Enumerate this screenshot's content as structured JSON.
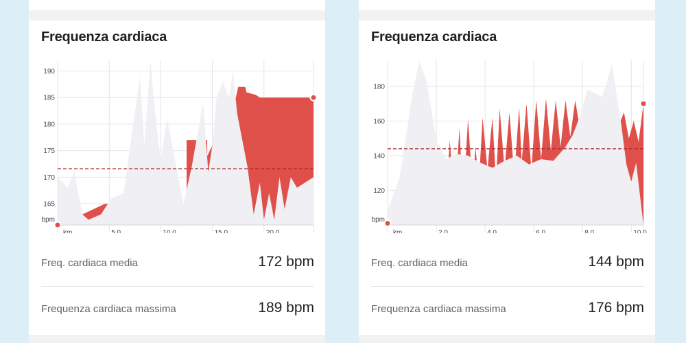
{
  "panels": [
    {
      "title": "Frequenza cardiaca",
      "stats": [
        {
          "label": "Freq. cardiaca media",
          "value": "172 bpm"
        },
        {
          "label": "Frequenza cardiaca massima",
          "value": "189 bpm"
        }
      ],
      "chart_data": {
        "type": "area",
        "title": "Frequenza cardiaca",
        "xlabel": "km",
        "ylabel": "bpm",
        "xlim": [
          0,
          24.8
        ],
        "ylim": [
          161,
          192
        ],
        "x_ticks": [
          5,
          10,
          15,
          20
        ],
        "x_tick_labels": [
          "5,0",
          "10,0",
          "15,0",
          "20,0"
        ],
        "y_ticks": [
          165,
          170,
          175,
          180,
          185,
          190
        ],
        "y_tick_labels": [
          "165",
          "170",
          "175",
          "180",
          "185",
          "190"
        ],
        "average_line": 171.6,
        "grid": true,
        "series": [
          {
            "role": "heart_rate",
            "color": "#e0504a",
            "x": [
              0,
              0.3,
              0.4,
              2.4,
              4.6,
              4.6,
              12.5,
              12.5,
              14.5,
              14.5,
              15.0,
              15.2,
              15.5,
              16.0,
              16.7,
              17.5,
              18.2,
              18.3,
              19.2,
              19.6,
              19.9,
              24.8
            ],
            "y": [
              161,
              162,
              163,
              163,
              165,
              165,
              165,
              177,
              177,
              174,
              176,
              176,
              172,
              175,
              180,
              187,
              187,
              186,
              185.5,
              185,
              185,
              185
            ]
          },
          {
            "role": "shadow",
            "color": "#f0eff3",
            "x": [
              0,
              1.0,
              1.6,
              2.4,
              3.0,
              4.2,
              5.2,
              6.4,
              7.4,
              8.0,
              8.4,
              9.0,
              9.4,
              10.0,
              10.6,
              11.4,
              12.2,
              13.0,
              14.1,
              14.6,
              15.0,
              15.4,
              16.0,
              16.6,
              17.0,
              17.4,
              17.8,
              18.4,
              19.0,
              19.6,
              20.0,
              20.5,
              21.0,
              21.5,
              22.0,
              22.6,
              23.2,
              24.8
            ],
            "y": [
              170,
              168,
              171,
              163,
              162,
              163,
              166,
              167,
              181,
              189,
              176,
              192,
              183,
              173,
              181,
              173,
              165,
              172,
              184,
              171,
              176,
              185,
              188,
              185,
              190,
              182,
              178,
              172,
              163,
              169,
              162,
              167,
              162,
              170,
              164,
              170,
              168,
              170
            ]
          }
        ]
      }
    },
    {
      "title": "Frequenza cardiaca",
      "stats": [
        {
          "label": "Freq. cardiaca media",
          "value": "144 bpm"
        },
        {
          "label": "Frequenza cardiaca massima",
          "value": "176 bpm"
        }
      ],
      "chart_data": {
        "type": "area",
        "title": "Frequenza cardiaca",
        "xlabel": "km",
        "ylabel": "bpm",
        "xlim": [
          0,
          10.5
        ],
        "ylim": [
          100,
          195
        ],
        "x_ticks": [
          2,
          4,
          6,
          8,
          10
        ],
        "x_tick_labels": [
          "2,0",
          "4,0",
          "6,0",
          "8,0",
          "10,0"
        ],
        "y_ticks": [
          120,
          140,
          160,
          180
        ],
        "y_tick_labels": [
          "120",
          "140",
          "160",
          "180"
        ],
        "average_line": 144,
        "grid": true,
        "series": [
          {
            "role": "heart_rate",
            "color": "#e0504a",
            "x": [
              0,
              0.15,
              0.3,
              0.5,
              0.7,
              0.9,
              1.1,
              1.3,
              1.5,
              1.7,
              1.9,
              2.05,
              2.2,
              2.4,
              2.55,
              2.75,
              2.95,
              3.1,
              3.3,
              3.5,
              3.6,
              3.75,
              3.9,
              4.1,
              4.3,
              4.45,
              4.6,
              4.8,
              5.0,
              5.2,
              5.4,
              5.5,
              5.7,
              5.9,
              6.1,
              6.3,
              6.5,
              6.7,
              6.9,
              7.1,
              7.3,
              7.5,
              7.7,
              7.9,
              8.1,
              8.3,
              8.5,
              8.7,
              8.9,
              9.1,
              9.3,
              9.5,
              9.7,
              9.9,
              10.1,
              10.3,
              10.5
            ],
            "y": [
              101,
              111,
              104,
              118,
              127,
              119,
              131,
              137,
              128,
              118,
              127,
              116,
              126,
              115,
              149,
              112,
              156,
              113,
              161,
              120,
              145,
              125,
              162,
              132,
              162,
              125,
              167,
              132,
              165,
              128,
              168,
              136,
              170,
              132,
              172,
              138,
              173,
              143,
              172,
              145,
              172,
              151,
              172,
              155,
              160,
              159,
              162,
              159,
              161,
              152,
              148,
              158,
              165,
              150,
              160,
              148,
              170
            ]
          },
          {
            "role": "shadow",
            "color": "#f0eff3",
            "x": [
              0,
              0.5,
              1.0,
              1.3,
              1.6,
              2.0,
              2.4,
              2.8,
              3.3,
              3.8,
              4.3,
              4.8,
              5.3,
              5.8,
              6.3,
              6.8,
              7.3,
              7.6,
              7.9,
              8.2,
              8.5,
              8.8,
              9.0,
              9.2,
              9.4,
              9.6,
              9.8,
              10.0,
              10.2,
              10.5
            ],
            "y": [
              108,
              128,
              174,
              195,
              183,
              149,
              138,
              141,
              140,
              136,
              133,
              137,
              140,
              135,
              138,
              137,
              145,
              152,
              163,
              178,
              176,
              174,
              182,
              193,
              175,
              157,
              135,
              125,
              136,
              100
            ]
          }
        ]
      }
    }
  ]
}
